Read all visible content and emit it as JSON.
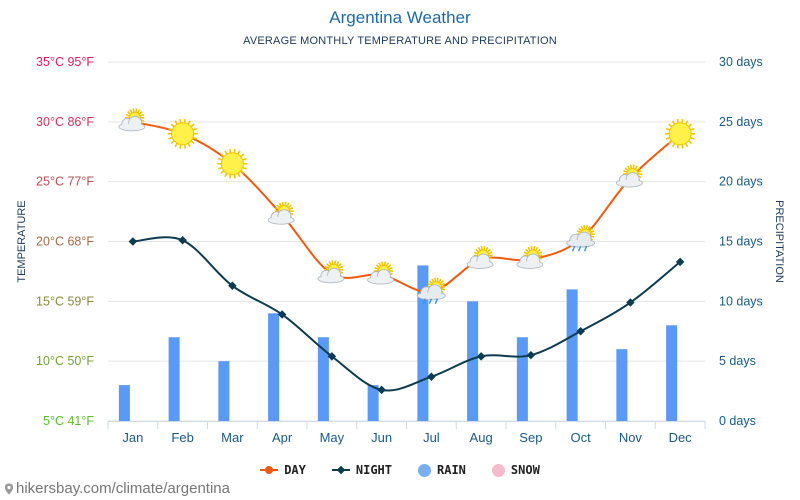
{
  "title": "Argentina Weather",
  "subtitle": "AVERAGE MONTHLY TEMPERATURE AND PRECIPITATION",
  "source": "hikersbay.com/climate/argentina",
  "colors": {
    "day": "#f05a0f",
    "night": "#0d3b4f",
    "rain": "#5a99f5",
    "rain_legend": "#79aef0",
    "snow": "#f7b9cc",
    "left_axis_top": "#e8196a",
    "left_axis_bottom": "#5cbf2a",
    "right_axis": "#1b5a82",
    "grid": "#e5e5e5"
  },
  "legend": [
    {
      "label": "DAY",
      "key": "day"
    },
    {
      "label": "NIGHT",
      "key": "night"
    },
    {
      "label": "RAIN",
      "key": "rain_legend"
    },
    {
      "label": "SNOW",
      "key": "snow"
    }
  ],
  "chart_data": {
    "type": "line",
    "categories": [
      "Jan",
      "Feb",
      "Mar",
      "Apr",
      "May",
      "Jun",
      "Jul",
      "Aug",
      "Sep",
      "Oct",
      "Nov",
      "Dec"
    ],
    "series": [
      {
        "name": "DAY",
        "values": [
          30,
          29,
          26.5,
          22.2,
          17.3,
          17.2,
          15.8,
          18.5,
          18.5,
          20.2,
          25.3,
          29
        ]
      },
      {
        "name": "NIGHT",
        "values": [
          20,
          20.1,
          16.3,
          13.9,
          10.4,
          7.6,
          8.7,
          10.4,
          10.5,
          12.5,
          14.9,
          18.3
        ]
      },
      {
        "name": "RAIN",
        "axis": "right",
        "values": [
          3,
          7,
          5,
          9,
          7,
          3,
          13,
          10,
          7,
          11,
          6,
          8
        ]
      }
    ],
    "weather_icons": [
      "partly-cloudy",
      "sun",
      "sun",
      "partly-cloudy",
      "partly-cloudy",
      "partly-cloudy",
      "cloud-rain",
      "partly-cloudy",
      "partly-cloudy",
      "cloud-rain",
      "partly-cloudy",
      "sun"
    ],
    "ylabel_left": "TEMPERATURE",
    "ylabel_right": "PRECIPITATION",
    "ylim_left": [
      5,
      35
    ],
    "ylim_right": [
      0,
      30
    ],
    "left_ticks": [
      "5°C 41°F",
      "10°C 50°F",
      "15°C 59°F",
      "20°C 68°F",
      "25°C 77°F",
      "30°C 86°F",
      "35°C 95°F"
    ],
    "right_ticks": [
      "0 days",
      "5 days",
      "10 days",
      "15 days",
      "20 days",
      "25 days",
      "30 days"
    ],
    "grid": true,
    "legend_position": "bottom"
  }
}
